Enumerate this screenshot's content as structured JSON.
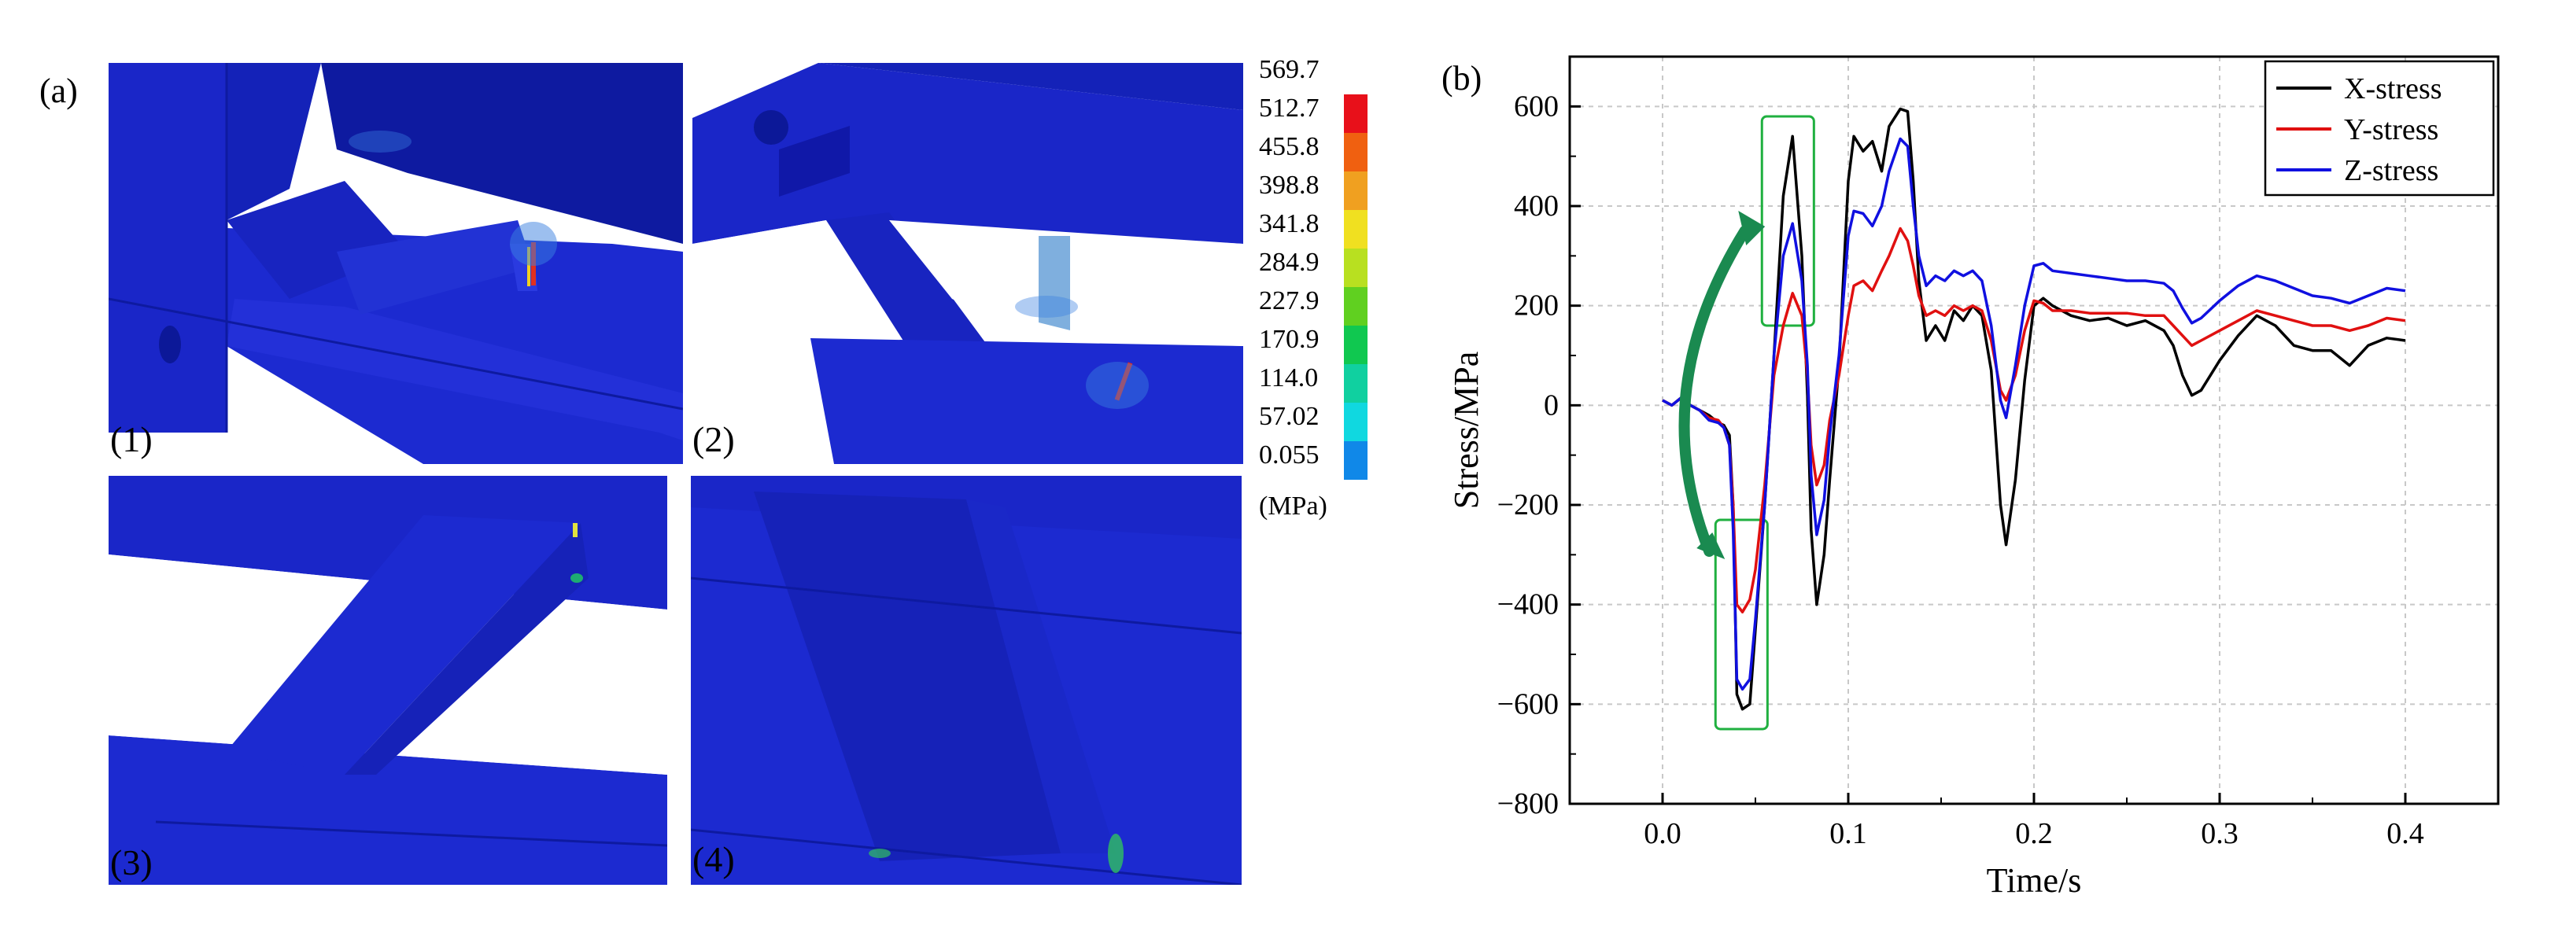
{
  "figure": {
    "panel_a_label": "(a)",
    "panel_b_label": "(b)",
    "views": [
      {
        "label": "(1)"
      },
      {
        "label": "(2)"
      },
      {
        "label": "(3)"
      },
      {
        "label": "(4)"
      }
    ]
  },
  "colorbar": {
    "levels": [
      "569.7",
      "512.7",
      "455.8",
      "398.8",
      "341.8",
      "284.9",
      "227.9",
      "170.9",
      "114.0",
      "57.02",
      "0.055"
    ],
    "unit": "(MPa)",
    "colors": [
      "#e8101a",
      "#f06010",
      "#f0a020",
      "#f0e020",
      "#b8e020",
      "#60d020",
      "#10c850",
      "#10d0a0",
      "#10d8e0",
      "#1088e8",
      "#1010e8"
    ]
  },
  "chart_data": {
    "type": "line",
    "xlabel": "Time/s",
    "ylabel": "Stress/MPa",
    "xlim": [
      -0.05,
      0.45
    ],
    "ylim": [
      -800,
      700
    ],
    "xticks": [
      "0.0",
      "0.1",
      "0.2",
      "0.3",
      "0.4"
    ],
    "yticks": [
      "600",
      "400",
      "200",
      "0",
      "−200",
      "−400",
      "−600",
      "−800"
    ],
    "grid": true,
    "legend_position": "top-right",
    "series": [
      {
        "name": "X-stress",
        "color": "#000000",
        "points": [
          [
            0.0,
            10
          ],
          [
            0.005,
            0
          ],
          [
            0.01,
            15
          ],
          [
            0.015,
            0
          ],
          [
            0.02,
            -10
          ],
          [
            0.025,
            -20
          ],
          [
            0.03,
            -35
          ],
          [
            0.033,
            -40
          ],
          [
            0.036,
            -60
          ],
          [
            0.038,
            -200
          ],
          [
            0.04,
            -580
          ],
          [
            0.043,
            -610
          ],
          [
            0.047,
            -600
          ],
          [
            0.05,
            -450
          ],
          [
            0.055,
            -200
          ],
          [
            0.06,
            100
          ],
          [
            0.065,
            420
          ],
          [
            0.07,
            540
          ],
          [
            0.075,
            300
          ],
          [
            0.078,
            20
          ],
          [
            0.08,
            -250
          ],
          [
            0.083,
            -400
          ],
          [
            0.087,
            -300
          ],
          [
            0.09,
            -150
          ],
          [
            0.095,
            80
          ],
          [
            0.1,
            450
          ],
          [
            0.103,
            540
          ],
          [
            0.108,
            510
          ],
          [
            0.113,
            530
          ],
          [
            0.118,
            470
          ],
          [
            0.122,
            560
          ],
          [
            0.128,
            595
          ],
          [
            0.132,
            590
          ],
          [
            0.135,
            450
          ],
          [
            0.138,
            250
          ],
          [
            0.142,
            130
          ],
          [
            0.147,
            160
          ],
          [
            0.152,
            130
          ],
          [
            0.157,
            190
          ],
          [
            0.162,
            170
          ],
          [
            0.167,
            200
          ],
          [
            0.172,
            180
          ],
          [
            0.177,
            70
          ],
          [
            0.182,
            -200
          ],
          [
            0.185,
            -280
          ],
          [
            0.19,
            -150
          ],
          [
            0.195,
            50
          ],
          [
            0.2,
            200
          ],
          [
            0.205,
            215
          ],
          [
            0.21,
            200
          ],
          [
            0.22,
            180
          ],
          [
            0.23,
            170
          ],
          [
            0.24,
            175
          ],
          [
            0.25,
            160
          ],
          [
            0.26,
            170
          ],
          [
            0.27,
            150
          ],
          [
            0.275,
            120
          ],
          [
            0.28,
            60
          ],
          [
            0.285,
            20
          ],
          [
            0.29,
            30
          ],
          [
            0.3,
            90
          ],
          [
            0.31,
            140
          ],
          [
            0.32,
            180
          ],
          [
            0.33,
            160
          ],
          [
            0.34,
            120
          ],
          [
            0.35,
            110
          ],
          [
            0.36,
            110
          ],
          [
            0.37,
            80
          ],
          [
            0.38,
            120
          ],
          [
            0.39,
            135
          ],
          [
            0.4,
            130
          ]
        ]
      },
      {
        "name": "Y-stress",
        "color": "#e01010",
        "points": [
          [
            0.0,
            10
          ],
          [
            0.005,
            0
          ],
          [
            0.01,
            15
          ],
          [
            0.015,
            0
          ],
          [
            0.02,
            -10
          ],
          [
            0.025,
            -25
          ],
          [
            0.03,
            -30
          ],
          [
            0.033,
            -45
          ],
          [
            0.036,
            -80
          ],
          [
            0.038,
            -200
          ],
          [
            0.04,
            -400
          ],
          [
            0.043,
            -415
          ],
          [
            0.047,
            -390
          ],
          [
            0.05,
            -330
          ],
          [
            0.055,
            -160
          ],
          [
            0.06,
            60
          ],
          [
            0.065,
            160
          ],
          [
            0.07,
            225
          ],
          [
            0.075,
            180
          ],
          [
            0.078,
            60
          ],
          [
            0.08,
            -80
          ],
          [
            0.083,
            -160
          ],
          [
            0.087,
            -120
          ],
          [
            0.09,
            -30
          ],
          [
            0.095,
            60
          ],
          [
            0.1,
            180
          ],
          [
            0.103,
            240
          ],
          [
            0.108,
            250
          ],
          [
            0.113,
            230
          ],
          [
            0.118,
            270
          ],
          [
            0.122,
            300
          ],
          [
            0.128,
            355
          ],
          [
            0.132,
            330
          ],
          [
            0.135,
            280
          ],
          [
            0.138,
            220
          ],
          [
            0.142,
            180
          ],
          [
            0.147,
            190
          ],
          [
            0.152,
            180
          ],
          [
            0.157,
            200
          ],
          [
            0.162,
            190
          ],
          [
            0.167,
            200
          ],
          [
            0.172,
            190
          ],
          [
            0.177,
            130
          ],
          [
            0.182,
            30
          ],
          [
            0.185,
            10
          ],
          [
            0.19,
            60
          ],
          [
            0.195,
            150
          ],
          [
            0.2,
            210
          ],
          [
            0.205,
            205
          ],
          [
            0.21,
            190
          ],
          [
            0.22,
            190
          ],
          [
            0.23,
            185
          ],
          [
            0.24,
            185
          ],
          [
            0.25,
            185
          ],
          [
            0.26,
            180
          ],
          [
            0.27,
            180
          ],
          [
            0.275,
            160
          ],
          [
            0.28,
            140
          ],
          [
            0.285,
            120
          ],
          [
            0.29,
            130
          ],
          [
            0.3,
            150
          ],
          [
            0.31,
            170
          ],
          [
            0.32,
            190
          ],
          [
            0.33,
            180
          ],
          [
            0.34,
            170
          ],
          [
            0.35,
            160
          ],
          [
            0.36,
            160
          ],
          [
            0.37,
            150
          ],
          [
            0.38,
            160
          ],
          [
            0.39,
            175
          ],
          [
            0.4,
            170
          ]
        ]
      },
      {
        "name": "Z-stress",
        "color": "#1010e0",
        "points": [
          [
            0.0,
            10
          ],
          [
            0.005,
            0
          ],
          [
            0.01,
            15
          ],
          [
            0.015,
            0
          ],
          [
            0.02,
            -10
          ],
          [
            0.025,
            -30
          ],
          [
            0.03,
            -35
          ],
          [
            0.033,
            -45
          ],
          [
            0.036,
            -80
          ],
          [
            0.038,
            -250
          ],
          [
            0.04,
            -550
          ],
          [
            0.043,
            -570
          ],
          [
            0.047,
            -550
          ],
          [
            0.05,
            -430
          ],
          [
            0.055,
            -200
          ],
          [
            0.06,
            100
          ],
          [
            0.065,
            300
          ],
          [
            0.07,
            365
          ],
          [
            0.075,
            250
          ],
          [
            0.078,
            80
          ],
          [
            0.08,
            -140
          ],
          [
            0.083,
            -260
          ],
          [
            0.087,
            -190
          ],
          [
            0.09,
            -60
          ],
          [
            0.095,
            100
          ],
          [
            0.1,
            340
          ],
          [
            0.103,
            390
          ],
          [
            0.108,
            385
          ],
          [
            0.113,
            360
          ],
          [
            0.118,
            400
          ],
          [
            0.122,
            470
          ],
          [
            0.128,
            535
          ],
          [
            0.132,
            520
          ],
          [
            0.135,
            400
          ],
          [
            0.138,
            300
          ],
          [
            0.142,
            240
          ],
          [
            0.147,
            260
          ],
          [
            0.152,
            250
          ],
          [
            0.157,
            270
          ],
          [
            0.162,
            260
          ],
          [
            0.167,
            270
          ],
          [
            0.172,
            250
          ],
          [
            0.177,
            160
          ],
          [
            0.182,
            10
          ],
          [
            0.185,
            -25
          ],
          [
            0.19,
            80
          ],
          [
            0.195,
            200
          ],
          [
            0.2,
            280
          ],
          [
            0.205,
            285
          ],
          [
            0.21,
            270
          ],
          [
            0.22,
            265
          ],
          [
            0.23,
            260
          ],
          [
            0.24,
            255
          ],
          [
            0.25,
            250
          ],
          [
            0.26,
            250
          ],
          [
            0.27,
            245
          ],
          [
            0.275,
            230
          ],
          [
            0.28,
            195
          ],
          [
            0.285,
            165
          ],
          [
            0.29,
            175
          ],
          [
            0.3,
            210
          ],
          [
            0.31,
            240
          ],
          [
            0.32,
            260
          ],
          [
            0.33,
            250
          ],
          [
            0.34,
            235
          ],
          [
            0.35,
            220
          ],
          [
            0.36,
            215
          ],
          [
            0.37,
            205
          ],
          [
            0.38,
            220
          ],
          [
            0.39,
            235
          ],
          [
            0.4,
            230
          ]
        ]
      }
    ],
    "annotations": {
      "boxes": [
        {
          "x": [
            0.0285,
            0.0565
          ],
          "y": [
            -650,
            -230
          ],
          "color": "#20b040"
        },
        {
          "x": [
            0.0535,
            0.0815
          ],
          "y": [
            160,
            580
          ],
          "color": "#20b040"
        }
      ],
      "arrow_color": "#1a8a50"
    }
  }
}
